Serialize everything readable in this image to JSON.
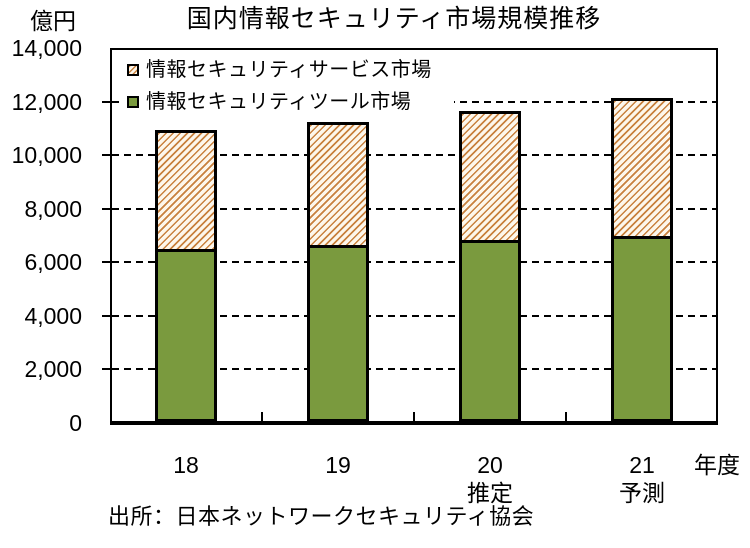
{
  "title": "国内情報セキュリティ市場規模推移",
  "y_axis_unit": "億円",
  "x_axis_unit": "年度",
  "source": "出所：日本ネットワークセキュリティ協会",
  "legend": [
    {
      "label": "情報セキュリティサービス市場",
      "swatch": "orange-hatch"
    },
    {
      "label": "情報セキュリティツール市場",
      "swatch": "green-solid"
    }
  ],
  "colors": {
    "tool_green": "#7a9a3e",
    "hatch_stripe": "#c8813e",
    "hatch_background": "#fdf7ec",
    "axis": "#000000",
    "background": "#ffffff"
  },
  "chart_data": {
    "type": "bar",
    "stacked": true,
    "title": "国内情報セキュリティ市場規模推移",
    "ylabel": "億円",
    "xlabel": "年度",
    "categories": [
      "18",
      "19",
      "20",
      "21"
    ],
    "category_sublabels": [
      "",
      "",
      "推定",
      "予測"
    ],
    "series": [
      {
        "name": "情報セキュリティツール市場",
        "style": "green-solid",
        "values": [
          6450,
          6600,
          6800,
          6950
        ]
      },
      {
        "name": "情報セキュリティサービス市場",
        "style": "orange-hatch",
        "values": [
          4450,
          4600,
          4800,
          5150
        ]
      }
    ],
    "totals": [
      10900,
      11200,
      11600,
      12100
    ],
    "ylim": [
      0,
      14000
    ],
    "ytick_interval": 2000,
    "yticks": [
      "14,000",
      "12,000",
      "10,000",
      "8,000",
      "6,000",
      "4,000",
      "2,000",
      "0"
    ],
    "grid": "dashed-horizontal",
    "legend_position": "top-left-inside"
  }
}
